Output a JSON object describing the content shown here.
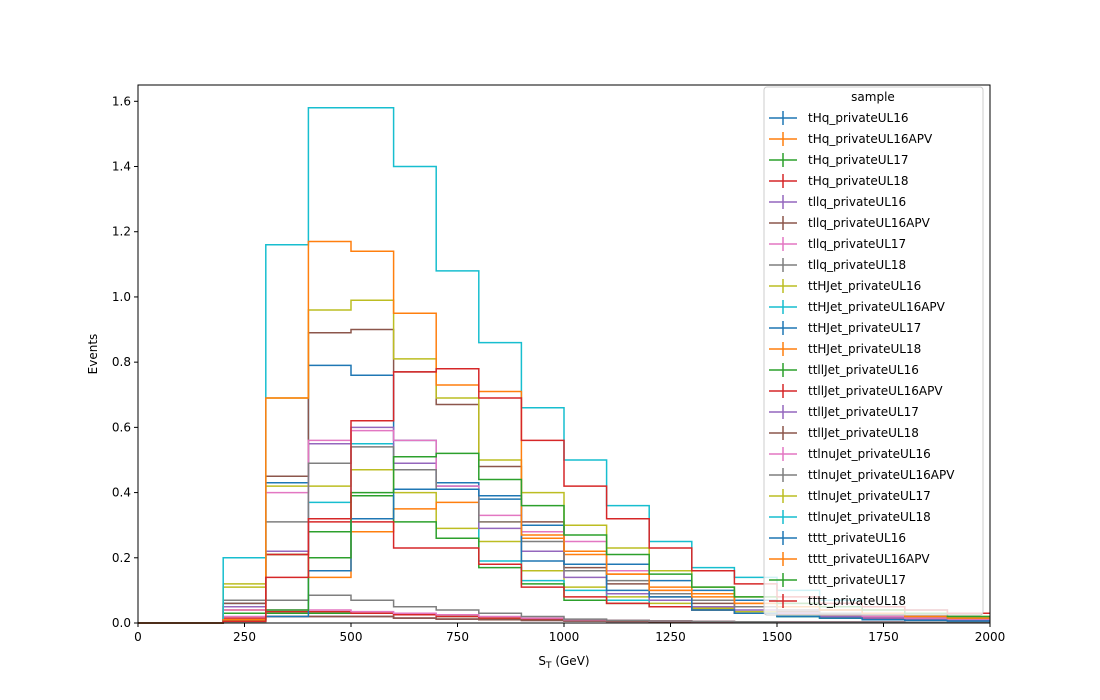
{
  "chart_data": {
    "type": "histogram-step",
    "xlabel": "S",
    "xlabel_sub": "T",
    "xlabel_unit": " (GeV)",
    "ylabel": "Events",
    "xlim": [
      0,
      2000
    ],
    "ylim": [
      0,
      1.65
    ],
    "xticks": [
      0,
      250,
      500,
      750,
      1000,
      1250,
      1500,
      1750,
      2000
    ],
    "yticks": [
      0.0,
      0.2,
      0.4,
      0.6,
      0.8,
      1.0,
      1.2,
      1.4,
      1.6
    ],
    "xtick_labels": [
      "0",
      "250",
      "500",
      "750",
      "1000",
      "1250",
      "1500",
      "1750",
      "2000"
    ],
    "ytick_labels": [
      "0.0",
      "0.2",
      "0.4",
      "0.6",
      "0.8",
      "1.0",
      "1.2",
      "1.4",
      "1.6"
    ],
    "bin_edges": [
      0,
      100,
      200,
      300,
      400,
      500,
      600,
      700,
      800,
      900,
      1000,
      1100,
      1200,
      1300,
      1400,
      1500,
      1600,
      1700,
      1800,
      1900,
      2000
    ],
    "legend": {
      "title": "sample",
      "placement": "upper-right"
    },
    "grid": false,
    "series": [
      {
        "name": "tHq_privateUL16",
        "color": "#1f77b4",
        "values": [
          0,
          0,
          0.01,
          0.02,
          0.02,
          0.02,
          0.015,
          0.012,
          0.01,
          0.008,
          0.006,
          0.005,
          0.004,
          0.003,
          0.003,
          0.002,
          0.002,
          0.002,
          0.002,
          0.002
        ]
      },
      {
        "name": "tHq_privateUL16APV",
        "color": "#ff7f0e",
        "values": [
          0,
          0,
          0.01,
          0.02,
          0.02,
          0.02,
          0.015,
          0.012,
          0.01,
          0.008,
          0.006,
          0.005,
          0.004,
          0.003,
          0.003,
          0.002,
          0.002,
          0.002,
          0.002,
          0.002
        ]
      },
      {
        "name": "tHq_privateUL17",
        "color": "#2ca02c",
        "values": [
          0,
          0,
          0.01,
          0.03,
          0.03,
          0.03,
          0.025,
          0.02,
          0.015,
          0.012,
          0.01,
          0.008,
          0.006,
          0.005,
          0.004,
          0.003,
          0.003,
          0.003,
          0.002,
          0.002
        ]
      },
      {
        "name": "tHq_privateUL18",
        "color": "#d62728",
        "values": [
          0,
          0,
          0.015,
          0.035,
          0.035,
          0.03,
          0.025,
          0.02,
          0.015,
          0.012,
          0.01,
          0.008,
          0.006,
          0.005,
          0.004,
          0.003,
          0.003,
          0.003,
          0.002,
          0.002
        ]
      },
      {
        "name": "tllq_privateUL16",
        "color": "#9467bd",
        "values": [
          0,
          0,
          0.01,
          0.02,
          0.02,
          0.02,
          0.015,
          0.012,
          0.01,
          0.008,
          0.006,
          0.005,
          0.004,
          0.003,
          0.003,
          0.002,
          0.002,
          0.002,
          0.002,
          0.002
        ]
      },
      {
        "name": "tllq_privateUL16APV",
        "color": "#8c564b",
        "values": [
          0,
          0,
          0.01,
          0.02,
          0.02,
          0.02,
          0.015,
          0.012,
          0.01,
          0.008,
          0.006,
          0.005,
          0.004,
          0.003,
          0.003,
          0.002,
          0.002,
          0.002,
          0.002,
          0.002
        ]
      },
      {
        "name": "tllq_privateUL17",
        "color": "#e377c2",
        "values": [
          0,
          0,
          0.02,
          0.04,
          0.04,
          0.035,
          0.03,
          0.025,
          0.02,
          0.015,
          0.01,
          0.008,
          0.006,
          0.005,
          0.004,
          0.003,
          0.003,
          0.003,
          0.002,
          0.002
        ]
      },
      {
        "name": "tllq_privateUL18",
        "color": "#7f7f7f",
        "values": [
          0,
          0,
          0.04,
          0.07,
          0.085,
          0.07,
          0.05,
          0.04,
          0.03,
          0.02,
          0.012,
          0.008,
          0.006,
          0.005,
          0.004,
          0.003,
          0.003,
          0.003,
          0.002,
          0.002
        ]
      },
      {
        "name": "ttHJet_privateUL16",
        "color": "#bcbd22",
        "values": [
          0,
          0,
          0.12,
          0.42,
          0.42,
          0.47,
          0.4,
          0.29,
          0.25,
          0.16,
          0.11,
          0.08,
          0.06,
          0.045,
          0.035,
          0.03,
          0.02,
          0.015,
          0.012,
          0.01
        ]
      },
      {
        "name": "ttHJet_privateUL16APV",
        "color": "#17becf",
        "values": [
          0,
          0,
          0.05,
          0.22,
          0.37,
          0.55,
          0.47,
          0.42,
          0.19,
          0.13,
          0.1,
          0.07,
          0.05,
          0.04,
          0.03,
          0.02,
          0.015,
          0.012,
          0.01,
          0.008
        ]
      },
      {
        "name": "ttHJet_privateUL17",
        "color": "#1f77b4",
        "values": [
          0,
          0,
          0.06,
          0.43,
          0.79,
          0.76,
          0.56,
          0.43,
          0.38,
          0.3,
          0.22,
          0.18,
          0.13,
          0.1,
          0.07,
          0.05,
          0.04,
          0.03,
          0.02,
          0.015
        ]
      },
      {
        "name": "ttHJet_privateUL18",
        "color": "#ff7f0e",
        "values": [
          0,
          0,
          0.04,
          0.21,
          0.14,
          0.28,
          0.35,
          0.37,
          0.31,
          0.26,
          0.21,
          0.15,
          0.11,
          0.09,
          0.06,
          0.05,
          0.04,
          0.03,
          0.02,
          0.015
        ]
      },
      {
        "name": "ttllJet_privateUL16",
        "color": "#2ca02c",
        "values": [
          0,
          0,
          0.03,
          0.21,
          0.28,
          0.39,
          0.31,
          0.26,
          0.17,
          0.12,
          0.07,
          0.06,
          0.05,
          0.04,
          0.03,
          0.02,
          0.015,
          0.012,
          0.01,
          0.008
        ]
      },
      {
        "name": "ttllJet_privateUL16APV",
        "color": "#d62728",
        "values": [
          0,
          0,
          0.05,
          0.21,
          0.31,
          0.31,
          0.23,
          0.23,
          0.18,
          0.11,
          0.08,
          0.06,
          0.05,
          0.04,
          0.03,
          0.025,
          0.02,
          0.015,
          0.012,
          0.01
        ]
      },
      {
        "name": "ttllJet_privateUL17",
        "color": "#9467bd",
        "values": [
          0,
          0,
          0.05,
          0.22,
          0.55,
          0.6,
          0.49,
          0.42,
          0.29,
          0.22,
          0.14,
          0.09,
          0.07,
          0.05,
          0.04,
          0.03,
          0.02,
          0.015,
          0.012,
          0.01
        ]
      },
      {
        "name": "ttllJet_privateUL18",
        "color": "#8c564b",
        "values": [
          0,
          0,
          0.06,
          0.45,
          0.89,
          0.9,
          0.77,
          0.67,
          0.48,
          0.31,
          0.17,
          0.12,
          0.08,
          0.06,
          0.05,
          0.035,
          0.025,
          0.02,
          0.015,
          0.012
        ]
      },
      {
        "name": "ttlnuJet_privateUL16",
        "color": "#e377c2",
        "values": [
          0,
          0,
          0.04,
          0.4,
          0.56,
          0.59,
          0.56,
          0.42,
          0.33,
          0.28,
          0.25,
          0.16,
          0.1,
          0.07,
          0.05,
          0.04,
          0.03,
          0.02,
          0.015,
          0.012
        ]
      },
      {
        "name": "ttlnuJet_privateUL16APV",
        "color": "#7f7f7f",
        "values": [
          0,
          0,
          0.07,
          0.31,
          0.49,
          0.54,
          0.47,
          0.41,
          0.31,
          0.25,
          0.16,
          0.13,
          0.09,
          0.07,
          0.05,
          0.04,
          0.03,
          0.025,
          0.02,
          0.015
        ]
      },
      {
        "name": "ttlnuJet_privateUL17",
        "color": "#bcbd22",
        "values": [
          0,
          0,
          0.11,
          0.69,
          0.96,
          0.99,
          0.81,
          0.69,
          0.5,
          0.4,
          0.3,
          0.23,
          0.16,
          0.11,
          0.08,
          0.06,
          0.05,
          0.04,
          0.03,
          0.02
        ]
      },
      {
        "name": "ttlnuJet_privateUL18",
        "color": "#17becf",
        "values": [
          0,
          0,
          0.2,
          1.16,
          1.58,
          1.58,
          1.4,
          1.08,
          0.86,
          0.66,
          0.5,
          0.36,
          0.25,
          0.17,
          0.14,
          0.1,
          0.07,
          0.05,
          0.04,
          0.03
        ]
      },
      {
        "name": "tttt_privateUL16",
        "color": "#1f77b4",
        "values": [
          0,
          0,
          0.005,
          0.02,
          0.16,
          0.32,
          0.41,
          0.41,
          0.39,
          0.19,
          0.18,
          0.1,
          0.08,
          0.04,
          0.03,
          0.02,
          0.015,
          0.01,
          0.008,
          0.006
        ]
      },
      {
        "name": "tttt_privateUL16APV",
        "color": "#ff7f0e",
        "values": [
          0,
          0,
          0.01,
          0.69,
          1.17,
          1.14,
          0.95,
          0.73,
          0.71,
          0.27,
          0.22,
          0.15,
          0.1,
          0.08,
          0.06,
          0.05,
          0.04,
          0.03,
          0.02,
          0.015
        ]
      },
      {
        "name": "tttt_privateUL17",
        "color": "#2ca02c",
        "values": [
          0,
          0,
          0.005,
          0.04,
          0.2,
          0.4,
          0.51,
          0.52,
          0.44,
          0.36,
          0.27,
          0.21,
          0.15,
          0.11,
          0.08,
          0.06,
          0.05,
          0.04,
          0.03,
          0.02
        ]
      },
      {
        "name": "tttt_privateUL18",
        "color": "#d62728",
        "values": [
          0,
          0,
          0.005,
          0.14,
          0.32,
          0.62,
          0.77,
          0.78,
          0.69,
          0.56,
          0.42,
          0.32,
          0.23,
          0.16,
          0.12,
          0.08,
          0.06,
          0.05,
          0.04,
          0.03
        ]
      }
    ]
  }
}
